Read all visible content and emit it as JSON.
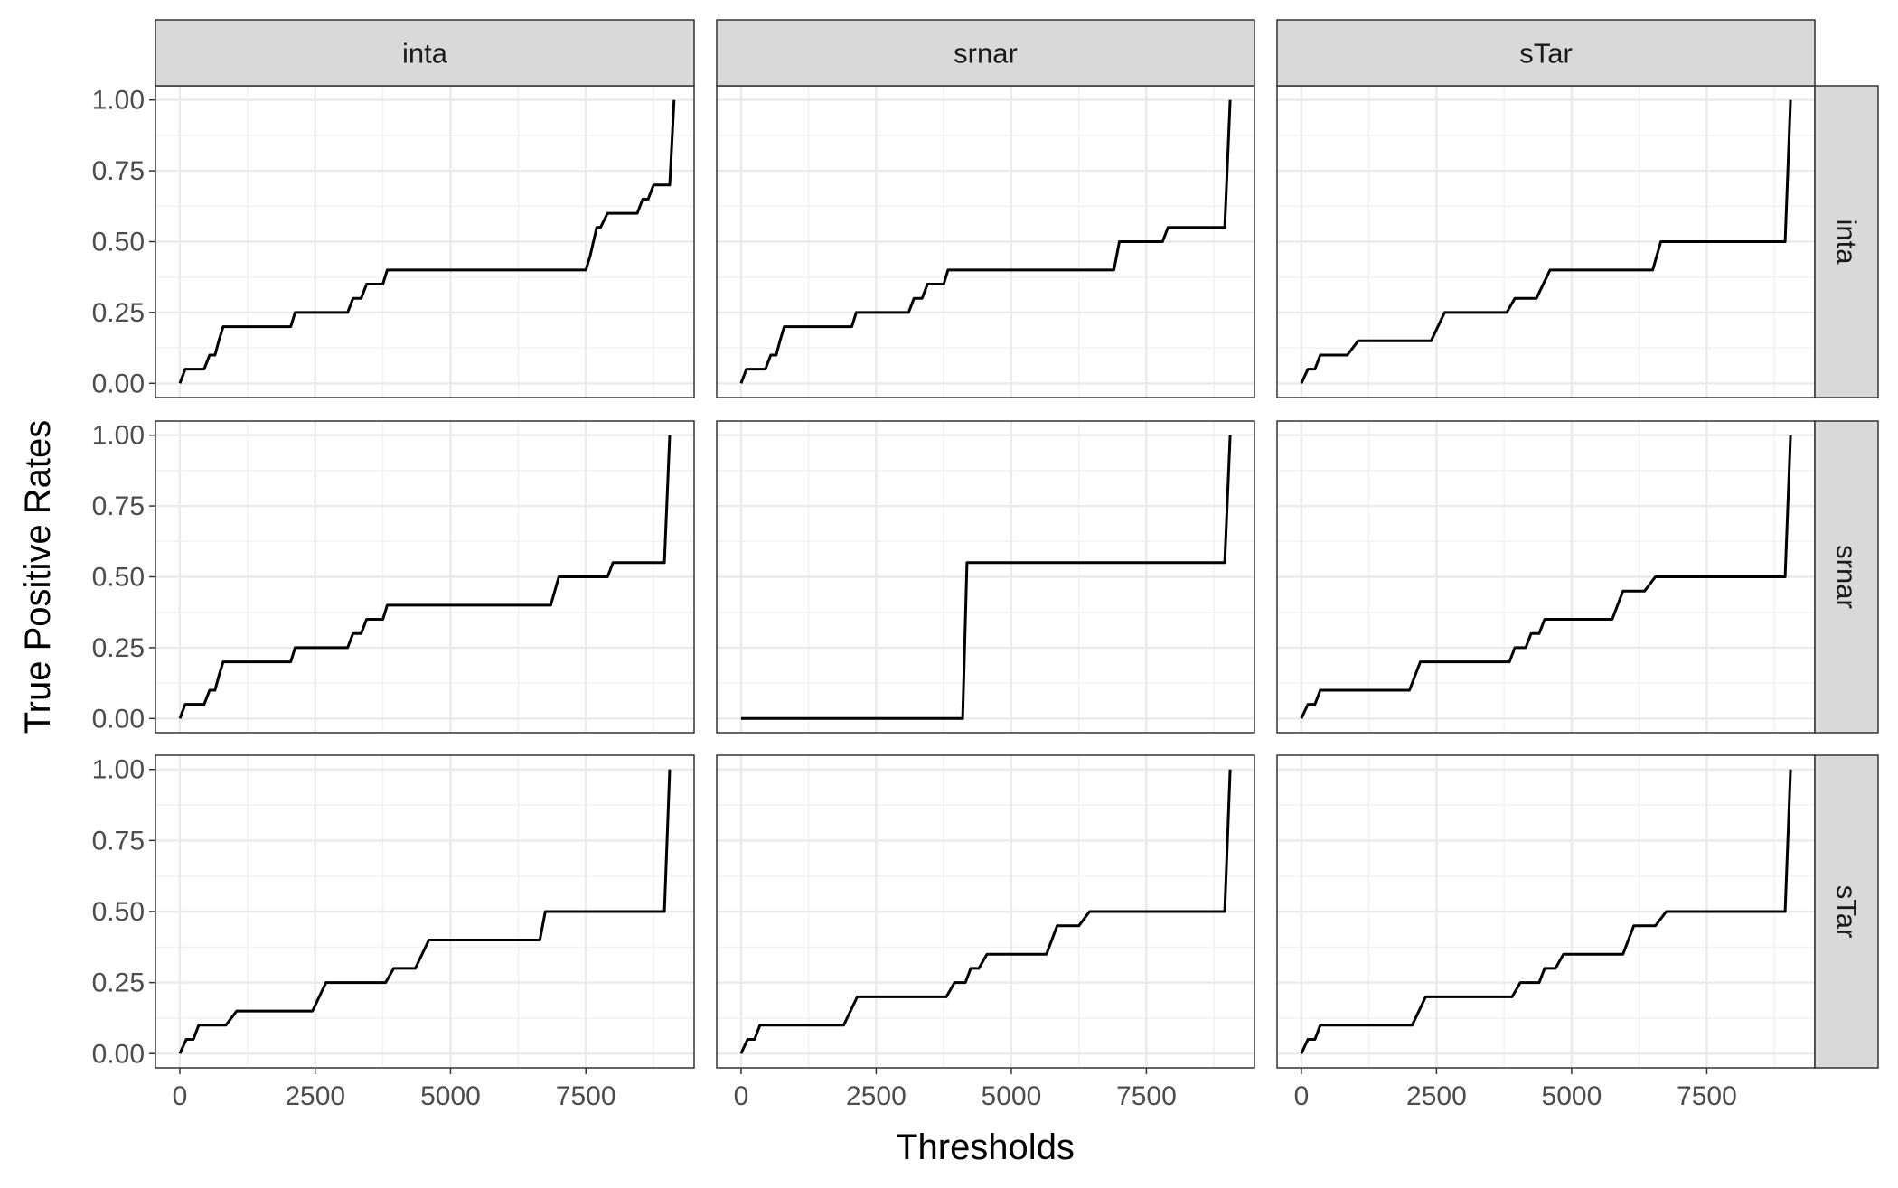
{
  "chart_data": {
    "type": "line",
    "layout": "facet-grid",
    "xlabel": "Thresholds",
    "ylabel": "True Positive Rates",
    "col_facets": [
      "inta",
      "srnar",
      "sTar"
    ],
    "row_facets": [
      "inta",
      "srnar",
      "sTar"
    ],
    "xlim": [
      -450,
      9500
    ],
    "ylim": [
      -0.05,
      1.05
    ],
    "x_ticks": [
      0,
      2500,
      5000,
      7500
    ],
    "x_tick_labels": [
      "0",
      "2500",
      "5000",
      "7500"
    ],
    "y_ticks": [
      0,
      0.25,
      0.5,
      0.75,
      1
    ],
    "y_tick_labels": [
      "0.00",
      "0.25",
      "0.50",
      "0.75",
      "1.00"
    ],
    "grid": true,
    "panels": [
      {
        "row": "inta",
        "col": "inta",
        "x": [
          0,
          100,
          450,
          550,
          650,
          720,
          800,
          2050,
          2130,
          3100,
          3200,
          3350,
          3450,
          3750,
          3830,
          7500,
          7580,
          7700,
          7770,
          7900,
          8450,
          8550,
          8650,
          8750,
          8950,
          9050,
          9130
        ],
        "y": [
          0,
          0.05,
          0.05,
          0.1,
          0.1,
          0.15,
          0.2,
          0.2,
          0.25,
          0.25,
          0.3,
          0.3,
          0.35,
          0.35,
          0.4,
          0.4,
          0.45,
          0.55,
          0.55,
          0.6,
          0.6,
          0.65,
          0.65,
          0.7,
          0.7,
          0.7,
          1.0
        ]
      },
      {
        "row": "inta",
        "col": "srnar",
        "x": [
          0,
          100,
          450,
          550,
          650,
          720,
          800,
          2050,
          2130,
          3100,
          3200,
          3350,
          3450,
          3750,
          3830,
          6900,
          7000,
          7800,
          7900,
          8950,
          9050
        ],
        "y": [
          0,
          0.05,
          0.05,
          0.1,
          0.1,
          0.15,
          0.2,
          0.2,
          0.25,
          0.25,
          0.3,
          0.3,
          0.35,
          0.35,
          0.4,
          0.4,
          0.5,
          0.5,
          0.55,
          0.55,
          1.0
        ]
      },
      {
        "row": "inta",
        "col": "sTar",
        "x": [
          0,
          120,
          250,
          350,
          850,
          1050,
          2400,
          2650,
          3800,
          3950,
          4350,
          4600,
          6500,
          6650,
          8950,
          9050
        ],
        "y": [
          0,
          0.05,
          0.05,
          0.1,
          0.1,
          0.15,
          0.15,
          0.25,
          0.25,
          0.3,
          0.3,
          0.4,
          0.4,
          0.5,
          0.5,
          1.0
        ]
      },
      {
        "row": "srnar",
        "col": "inta",
        "x": [
          0,
          100,
          450,
          550,
          650,
          720,
          800,
          2050,
          2130,
          3100,
          3200,
          3350,
          3450,
          3750,
          3830,
          6850,
          7000,
          7900,
          8000,
          8950,
          9050
        ],
        "y": [
          0,
          0.05,
          0.05,
          0.1,
          0.1,
          0.15,
          0.2,
          0.2,
          0.25,
          0.25,
          0.3,
          0.3,
          0.35,
          0.35,
          0.4,
          0.4,
          0.5,
          0.5,
          0.55,
          0.55,
          1.0
        ]
      },
      {
        "row": "srnar",
        "col": "srnar",
        "x": [
          0,
          4100,
          4180,
          8950,
          9050
        ],
        "y": [
          0,
          0,
          0.55,
          0.55,
          1.0
        ]
      },
      {
        "row": "srnar",
        "col": "sTar",
        "x": [
          0,
          120,
          250,
          350,
          2000,
          2200,
          3850,
          3950,
          4150,
          4250,
          4400,
          4500,
          5750,
          5950,
          6350,
          6550,
          8950,
          9050
        ],
        "y": [
          0,
          0.05,
          0.05,
          0.1,
          0.1,
          0.2,
          0.2,
          0.25,
          0.25,
          0.3,
          0.3,
          0.35,
          0.35,
          0.45,
          0.45,
          0.5,
          0.5,
          1.0
        ]
      },
      {
        "row": "sTar",
        "col": "inta",
        "x": [
          0,
          120,
          250,
          350,
          850,
          1050,
          2450,
          2700,
          3800,
          3950,
          4350,
          4600,
          6650,
          6750,
          8950,
          9050
        ],
        "y": [
          0,
          0.05,
          0.05,
          0.1,
          0.1,
          0.15,
          0.15,
          0.25,
          0.25,
          0.3,
          0.3,
          0.4,
          0.4,
          0.5,
          0.5,
          1.0
        ]
      },
      {
        "row": "sTar",
        "col": "srnar",
        "x": [
          0,
          120,
          250,
          350,
          1900,
          2150,
          3800,
          3950,
          4150,
          4250,
          4400,
          4550,
          5650,
          5850,
          6250,
          6450,
          8950,
          9050
        ],
        "y": [
          0,
          0.05,
          0.05,
          0.1,
          0.1,
          0.2,
          0.2,
          0.25,
          0.25,
          0.3,
          0.3,
          0.35,
          0.35,
          0.45,
          0.45,
          0.5,
          0.5,
          1.0
        ]
      },
      {
        "row": "sTar",
        "col": "sTar",
        "x": [
          0,
          120,
          250,
          350,
          2050,
          2300,
          3900,
          4050,
          4400,
          4500,
          4700,
          4850,
          5950,
          6150,
          6550,
          6750,
          8950,
          9050
        ],
        "y": [
          0,
          0.05,
          0.05,
          0.1,
          0.1,
          0.2,
          0.2,
          0.25,
          0.25,
          0.3,
          0.3,
          0.35,
          0.35,
          0.45,
          0.45,
          0.5,
          0.5,
          1.0
        ]
      }
    ]
  }
}
